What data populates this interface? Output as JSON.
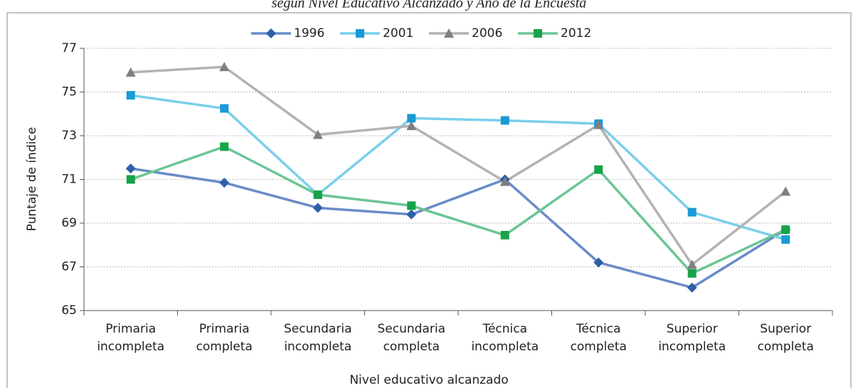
{
  "chart_data": {
    "type": "line",
    "title": "según Nivel Educativo Alcanzado y Año de la Encuesta",
    "x_label": "Nivel educativo alcanzado",
    "y_label": "Puntaje de índice",
    "categories": [
      "Primaria incompleta",
      "Primaria completa",
      "Secundaria incompleta",
      "Secundaria completa",
      "Técnica incompleta",
      "Técnica completa",
      "Superior incompleta",
      "Superior completa"
    ],
    "series": [
      {
        "name": "1996",
        "color": "#6a8bc8",
        "marker_color": "#2e5fa8",
        "marker": "diamond",
        "values": [
          71.5,
          70.85,
          69.7,
          69.4,
          71.0,
          67.2,
          66.05,
          68.7
        ]
      },
      {
        "name": "2001",
        "color": "#79cfea",
        "marker_color": "#1a9ad6",
        "marker": "square",
        "values": [
          74.85,
          74.25,
          70.3,
          73.8,
          73.7,
          73.55,
          69.5,
          68.25
        ]
      },
      {
        "name": "2006",
        "color": "#b3b3b3",
        "marker_color": "#7f7f7f",
        "marker": "triangle",
        "values": [
          75.9,
          76.15,
          73.05,
          73.45,
          70.9,
          73.5,
          67.1,
          70.45
        ]
      },
      {
        "name": "2012",
        "color": "#6cc595",
        "marker_color": "#17a34a",
        "marker": "square",
        "values": [
          71.0,
          72.5,
          70.3,
          69.8,
          68.45,
          71.45,
          66.7,
          68.7
        ]
      }
    ],
    "ylim": [
      65,
      77
    ],
    "yticks": [
      65,
      67,
      69,
      71,
      73,
      75,
      77
    ],
    "grid": true,
    "legend": "top"
  }
}
